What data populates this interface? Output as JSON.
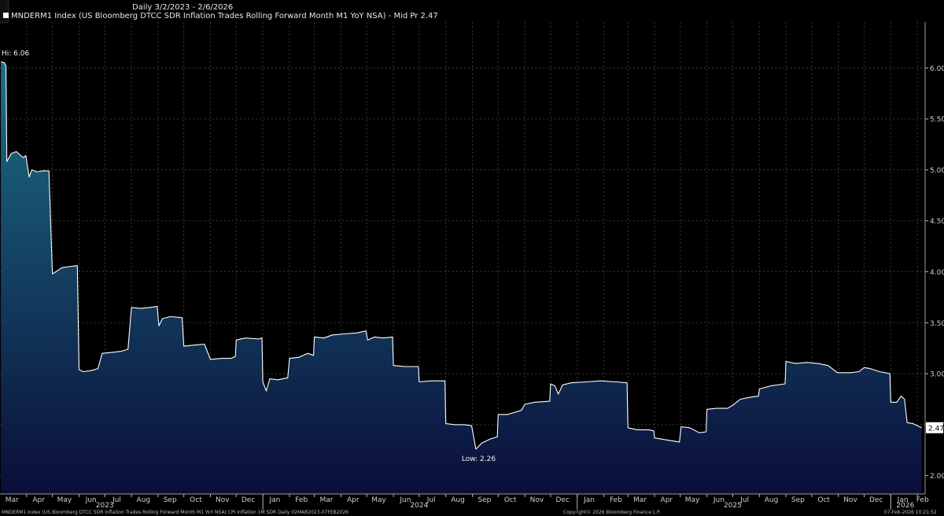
{
  "header": {
    "range_label": "Daily 3/2/2023 - 2/6/2026",
    "legend_label": "MNDERM1 Index (US Bloomberg DTCC SDR Inflation Trades Rolling Forward Month M1 YoY NSA) - Mid Pr 2.47"
  },
  "footer": {
    "source": "MNDERM1 Index (US Bloomberg DTCC SDR Inflation Trades Rolling Forward Month M1 YoY NSA) CPI Inflation 1M SDR Daily 02MAR2023-07FEB2026",
    "copyright": "Copyright© 2026 Bloomberg Finance L.P.",
    "timestamp": "07-Feb-2026 10:21:52"
  },
  "colors": {
    "background": "#000000",
    "line": "#ffffff",
    "fill_top": "#1d6f86",
    "fill_bottom": "#0a0e3a",
    "grid": "#3a3a3a",
    "last_price_box": "#ffffff"
  },
  "chart_data": {
    "type": "area",
    "title": "",
    "xlabel": "",
    "ylabel": "",
    "ylim": [
      1.82,
      6.45
    ],
    "xlim": [
      "2023-03-01",
      "2026-02-10"
    ],
    "yticks": [
      "2.00",
      "2.50",
      "3.00",
      "3.50",
      "4.00",
      "4.50",
      "5.00",
      "5.50",
      "6.00"
    ],
    "month_labels": [
      {
        "date": "2023-03-15",
        "label": "Mar"
      },
      {
        "date": "2023-04-15",
        "label": "Apr"
      },
      {
        "date": "2023-05-15",
        "label": "May"
      },
      {
        "date": "2023-06-15",
        "label": "Jun"
      },
      {
        "date": "2023-07-15",
        "label": "Jul"
      },
      {
        "date": "2023-08-15",
        "label": "Aug"
      },
      {
        "date": "2023-09-15",
        "label": "Sep"
      },
      {
        "date": "2023-10-15",
        "label": "Oct"
      },
      {
        "date": "2023-11-15",
        "label": "Nov"
      },
      {
        "date": "2023-12-15",
        "label": "Dec"
      },
      {
        "date": "2024-01-15",
        "label": "Jan"
      },
      {
        "date": "2024-02-15",
        "label": "Feb"
      },
      {
        "date": "2024-03-15",
        "label": "Mar"
      },
      {
        "date": "2024-04-15",
        "label": "Apr"
      },
      {
        "date": "2024-05-15",
        "label": "May"
      },
      {
        "date": "2024-06-15",
        "label": "Jun"
      },
      {
        "date": "2024-07-15",
        "label": "Jul"
      },
      {
        "date": "2024-08-15",
        "label": "Aug"
      },
      {
        "date": "2024-09-15",
        "label": "Sep"
      },
      {
        "date": "2024-10-15",
        "label": "Oct"
      },
      {
        "date": "2024-11-15",
        "label": "Nov"
      },
      {
        "date": "2024-12-15",
        "label": "Dec"
      },
      {
        "date": "2025-01-15",
        "label": "Jan"
      },
      {
        "date": "2025-02-15",
        "label": "Feb"
      },
      {
        "date": "2025-03-15",
        "label": "Mar"
      },
      {
        "date": "2025-04-15",
        "label": "Apr"
      },
      {
        "date": "2025-05-15",
        "label": "May"
      },
      {
        "date": "2025-06-15",
        "label": "Jun"
      },
      {
        "date": "2025-07-15",
        "label": "Jul"
      },
      {
        "date": "2025-08-15",
        "label": "Aug"
      },
      {
        "date": "2025-09-15",
        "label": "Sep"
      },
      {
        "date": "2025-10-15",
        "label": "Oct"
      },
      {
        "date": "2025-11-15",
        "label": "Nov"
      },
      {
        "date": "2025-12-15",
        "label": "Dec"
      },
      {
        "date": "2026-01-15",
        "label": "Jan"
      },
      {
        "date": "2026-02-07",
        "label": "Feb"
      }
    ],
    "year_labels": [
      {
        "date": "2023-07-01",
        "label": "2023"
      },
      {
        "date": "2024-07-01",
        "label": "2024"
      },
      {
        "date": "2025-07-01",
        "label": "2025"
      },
      {
        "date": "2026-01-18",
        "label": "2026"
      }
    ],
    "year_separators": [
      "2024-01-01",
      "2025-01-01",
      "2026-01-01"
    ],
    "annotations": [
      {
        "text": "Hi: 6.06",
        "date": "2023-03-02",
        "value": 6.06
      },
      {
        "text": "Low: 2.26",
        "date": "2024-09-05",
        "value": 2.26
      }
    ],
    "last_value": {
      "text": "2.47",
      "value": 2.47
    },
    "series": [
      {
        "points": [
          [
            "2023-03-02",
            6.06
          ],
          [
            "2023-03-06",
            6.05
          ],
          [
            "2023-03-08",
            6.02
          ],
          [
            "2023-03-09",
            5.08
          ],
          [
            "2023-03-14",
            5.16
          ],
          [
            "2023-03-20",
            5.18
          ],
          [
            "2023-03-28",
            5.12
          ],
          [
            "2023-03-31",
            5.14
          ],
          [
            "2023-04-04",
            4.93
          ],
          [
            "2023-04-07",
            5.0
          ],
          [
            "2023-04-13",
            4.98
          ],
          [
            "2023-04-20",
            4.99
          ],
          [
            "2023-04-27",
            4.99
          ],
          [
            "2023-05-01",
            3.98
          ],
          [
            "2023-05-05",
            4.0
          ],
          [
            "2023-05-12",
            4.04
          ],
          [
            "2023-05-20",
            4.05
          ],
          [
            "2023-05-30",
            4.06
          ],
          [
            "2023-06-01",
            3.04
          ],
          [
            "2023-06-06",
            3.02
          ],
          [
            "2023-06-15",
            3.03
          ],
          [
            "2023-06-23",
            3.05
          ],
          [
            "2023-06-28",
            3.2
          ],
          [
            "2023-07-10",
            3.21
          ],
          [
            "2023-07-20",
            3.22
          ],
          [
            "2023-07-28",
            3.24
          ],
          [
            "2023-08-01",
            3.65
          ],
          [
            "2023-08-12",
            3.64
          ],
          [
            "2023-08-22",
            3.65
          ],
          [
            "2023-08-31",
            3.66
          ],
          [
            "2023-09-02",
            3.47
          ],
          [
            "2023-09-06",
            3.54
          ],
          [
            "2023-09-15",
            3.56
          ],
          [
            "2023-09-29",
            3.55
          ],
          [
            "2023-10-01",
            3.27
          ],
          [
            "2023-10-12",
            3.28
          ],
          [
            "2023-10-25",
            3.29
          ],
          [
            "2023-11-01",
            3.14
          ],
          [
            "2023-11-14",
            3.15
          ],
          [
            "2023-11-25",
            3.15
          ],
          [
            "2023-11-30",
            3.17
          ],
          [
            "2023-12-01",
            3.33
          ],
          [
            "2023-12-12",
            3.35
          ],
          [
            "2023-12-27",
            3.34
          ],
          [
            "2023-12-31",
            3.35
          ],
          [
            "2024-01-01",
            2.92
          ],
          [
            "2024-01-05",
            2.83
          ],
          [
            "2024-01-09",
            2.95
          ],
          [
            "2024-01-18",
            2.94
          ],
          [
            "2024-01-30",
            2.96
          ],
          [
            "2024-02-01",
            3.15
          ],
          [
            "2024-02-12",
            3.16
          ],
          [
            "2024-02-22",
            3.2
          ],
          [
            "2024-02-29",
            3.18
          ],
          [
            "2024-03-01",
            3.36
          ],
          [
            "2024-03-12",
            3.35
          ],
          [
            "2024-03-22",
            3.38
          ],
          [
            "2024-04-05",
            3.39
          ],
          [
            "2024-04-20",
            3.4
          ],
          [
            "2024-04-30",
            3.42
          ],
          [
            "2024-05-02",
            3.33
          ],
          [
            "2024-05-10",
            3.36
          ],
          [
            "2024-05-20",
            3.35
          ],
          [
            "2024-05-31",
            3.36
          ],
          [
            "2024-06-01",
            3.08
          ],
          [
            "2024-06-14",
            3.07
          ],
          [
            "2024-06-30",
            3.07
          ],
          [
            "2024-07-01",
            2.92
          ],
          [
            "2024-07-15",
            2.93
          ],
          [
            "2024-07-31",
            2.93
          ],
          [
            "2024-08-01",
            2.51
          ],
          [
            "2024-08-12",
            2.5
          ],
          [
            "2024-08-23",
            2.5
          ],
          [
            "2024-08-31",
            2.49
          ],
          [
            "2024-09-05",
            2.26
          ],
          [
            "2024-09-12",
            2.32
          ],
          [
            "2024-09-22",
            2.36
          ],
          [
            "2024-09-30",
            2.38
          ],
          [
            "2024-10-01",
            2.6
          ],
          [
            "2024-10-12",
            2.6
          ],
          [
            "2024-10-28",
            2.64
          ],
          [
            "2024-11-01",
            2.7
          ],
          [
            "2024-11-12",
            2.72
          ],
          [
            "2024-11-30",
            2.73
          ],
          [
            "2024-12-01",
            2.9
          ],
          [
            "2024-12-06",
            2.88
          ],
          [
            "2024-12-10",
            2.8
          ],
          [
            "2024-12-15",
            2.89
          ],
          [
            "2024-12-25",
            2.91
          ],
          [
            "2025-01-12",
            2.92
          ],
          [
            "2025-01-28",
            2.93
          ],
          [
            "2025-02-15",
            2.92
          ],
          [
            "2025-02-28",
            2.91
          ],
          [
            "2025-03-01",
            2.47
          ],
          [
            "2025-03-12",
            2.45
          ],
          [
            "2025-03-25",
            2.45
          ],
          [
            "2025-03-31",
            2.44
          ],
          [
            "2025-04-01",
            2.37
          ],
          [
            "2025-04-15",
            2.35
          ],
          [
            "2025-04-30",
            2.33
          ],
          [
            "2025-05-02",
            2.48
          ],
          [
            "2025-05-12",
            2.47
          ],
          [
            "2025-05-23",
            2.42
          ],
          [
            "2025-05-31",
            2.43
          ],
          [
            "2025-06-01",
            2.65
          ],
          [
            "2025-06-12",
            2.66
          ],
          [
            "2025-06-25",
            2.66
          ],
          [
            "2025-07-01",
            2.69
          ],
          [
            "2025-07-10",
            2.75
          ],
          [
            "2025-07-22",
            2.77
          ],
          [
            "2025-07-31",
            2.78
          ],
          [
            "2025-08-01",
            2.85
          ],
          [
            "2025-08-14",
            2.88
          ],
          [
            "2025-08-31",
            2.9
          ],
          [
            "2025-09-01",
            3.12
          ],
          [
            "2025-09-12",
            3.1
          ],
          [
            "2025-09-25",
            3.11
          ],
          [
            "2025-10-08",
            3.1
          ],
          [
            "2025-10-20",
            3.08
          ],
          [
            "2025-10-31",
            3.01
          ],
          [
            "2025-11-15",
            3.01
          ],
          [
            "2025-11-25",
            3.02
          ],
          [
            "2025-12-01",
            3.06
          ],
          [
            "2025-12-08",
            3.05
          ],
          [
            "2025-12-19",
            3.02
          ],
          [
            "2025-12-31",
            3.0
          ],
          [
            "2026-01-01",
            2.72
          ],
          [
            "2026-01-08",
            2.72
          ],
          [
            "2026-01-13",
            2.78
          ],
          [
            "2026-01-17",
            2.75
          ],
          [
            "2026-01-20",
            2.52
          ],
          [
            "2026-01-27",
            2.51
          ],
          [
            "2026-02-01",
            2.49
          ],
          [
            "2026-02-06",
            2.47
          ]
        ]
      }
    ]
  }
}
